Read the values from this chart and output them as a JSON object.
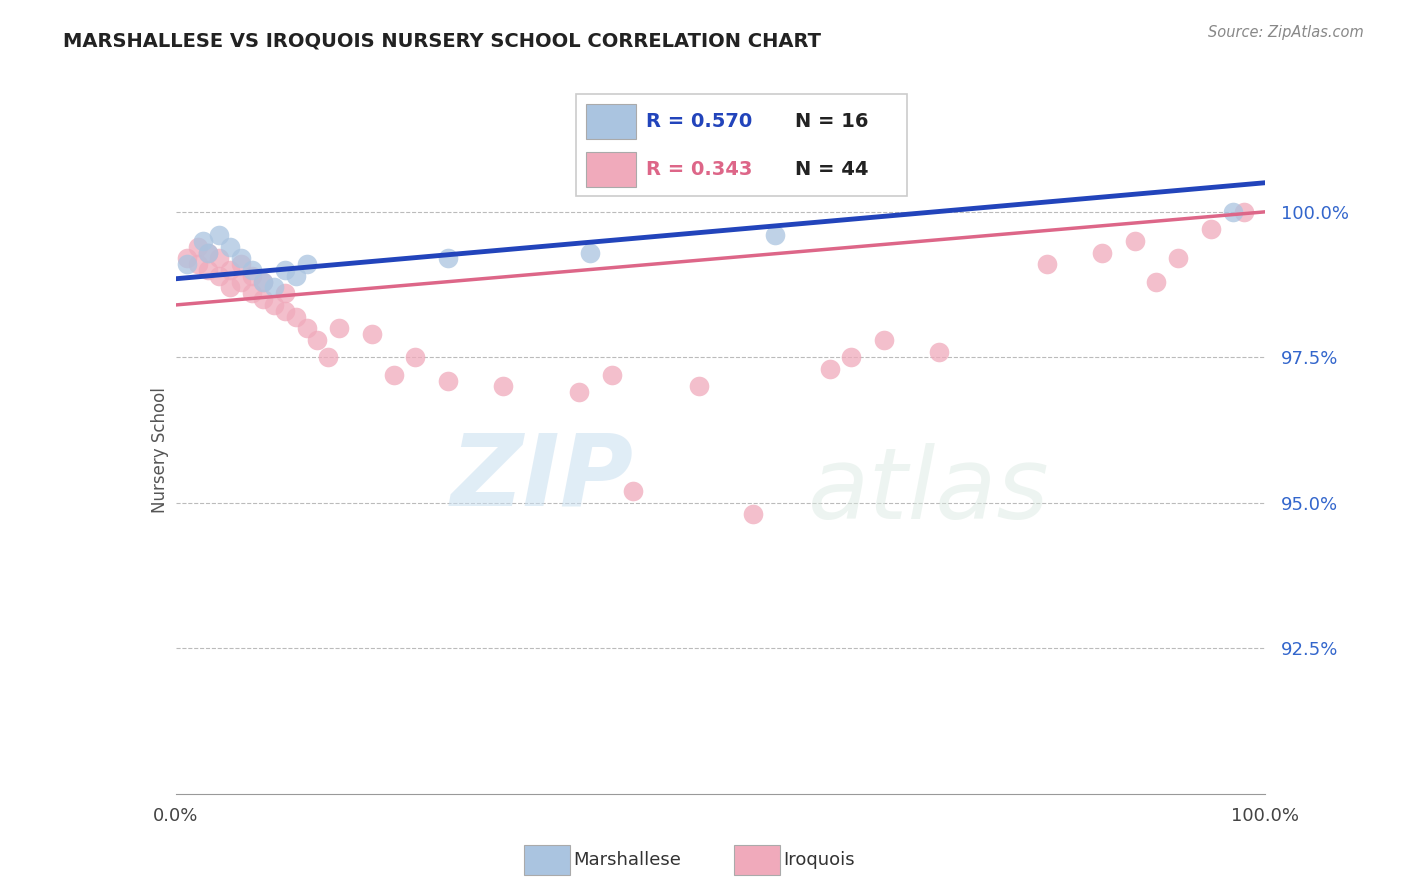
{
  "title": "MARSHALLESE VS IROQUOIS NURSERY SCHOOL CORRELATION CHART",
  "source_text": "Source: ZipAtlas.com",
  "ylabel": "Nursery School",
  "xlim": [
    0.0,
    100.0
  ],
  "ylim": [
    90.0,
    101.8
  ],
  "yticks": [
    92.5,
    95.0,
    97.5,
    100.0
  ],
  "ytick_labels": [
    "92.5%",
    "95.0%",
    "97.5%",
    "100.0%"
  ],
  "xticks": [
    0.0,
    100.0
  ],
  "xtick_labels": [
    "0.0%",
    "100.0%"
  ],
  "blue_color": "#aac4e0",
  "pink_color": "#f0aabb",
  "blue_line_color": "#2244bb",
  "pink_line_color": "#dd6688",
  "legend_r_blue": "R = 0.570",
  "legend_n_blue": "N = 16",
  "legend_r_pink": "R = 0.343",
  "legend_n_pink": "N = 44",
  "watermark_zip": "ZIP",
  "watermark_atlas": "atlas",
  "blue_x": [
    1.0,
    2.5,
    3.0,
    4.0,
    5.0,
    6.0,
    7.0,
    8.0,
    9.0,
    10.0,
    11.0,
    12.0,
    25.0,
    38.0,
    55.0,
    97.0
  ],
  "blue_y": [
    99.1,
    99.5,
    99.3,
    99.6,
    99.4,
    99.2,
    99.0,
    98.8,
    98.7,
    99.0,
    98.9,
    99.1,
    99.2,
    99.3,
    99.6,
    100.0
  ],
  "pink_x": [
    1,
    2,
    2,
    3,
    3,
    4,
    4,
    5,
    5,
    6,
    6,
    7,
    7,
    8,
    8,
    9,
    10,
    10,
    11,
    12,
    13,
    14,
    15,
    18,
    20,
    22,
    25,
    30,
    37,
    40,
    42,
    48,
    53,
    60,
    62,
    65,
    70,
    80,
    85,
    88,
    90,
    92,
    95,
    98
  ],
  "pink_y": [
    99.2,
    99.4,
    99.1,
    99.3,
    99.0,
    98.9,
    99.2,
    98.7,
    99.0,
    98.8,
    99.1,
    98.6,
    98.9,
    98.5,
    98.8,
    98.4,
    98.6,
    98.3,
    98.2,
    98.0,
    97.8,
    97.5,
    98.0,
    97.9,
    97.2,
    97.5,
    97.1,
    97.0,
    96.9,
    97.2,
    95.2,
    97.0,
    94.8,
    97.3,
    97.5,
    97.8,
    97.6,
    99.1,
    99.3,
    99.5,
    98.8,
    99.2,
    99.7,
    100.0
  ],
  "blue_line_x0": 0.0,
  "blue_line_y0": 98.85,
  "blue_line_x1": 100.0,
  "blue_line_y1": 100.5,
  "pink_line_x0": 0.0,
  "pink_line_y0": 98.4,
  "pink_line_x1": 100.0,
  "pink_line_y1": 100.0
}
